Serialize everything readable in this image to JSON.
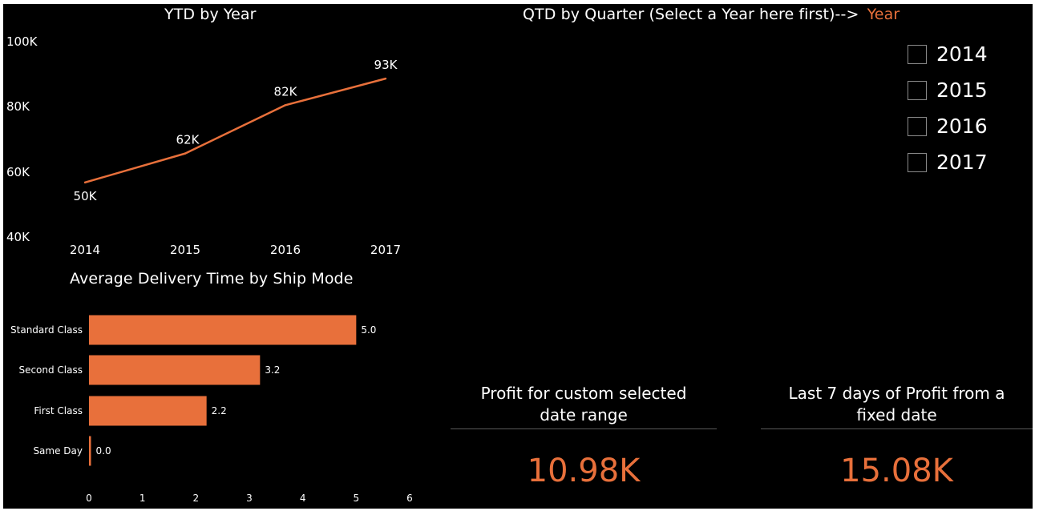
{
  "colors": {
    "background": "#000000",
    "accent": "#E8703B",
    "text": "#FFFFFF"
  },
  "ytd_chart": {
    "title": "YTD by Year"
  },
  "qtd_header": {
    "title": "QTD by Quarter (Select a Year here first)-->",
    "slicer_title": "Year"
  },
  "year_slicer": {
    "items": [
      {
        "label": "2014",
        "checked": false
      },
      {
        "label": "2015",
        "checked": false
      },
      {
        "label": "2016",
        "checked": false
      },
      {
        "label": "2017",
        "checked": false
      }
    ]
  },
  "delivery_chart": {
    "title": "Average Delivery Time by Ship Mode"
  },
  "card_custom": {
    "title_line1": "Profit for custom selected",
    "title_line2": "date range",
    "value": "10.98K"
  },
  "card_last7": {
    "title_line1": "Last 7 days of Profit from a",
    "title_line2": "fixed date",
    "value": "15.08K"
  },
  "chart_data": [
    {
      "type": "line",
      "title": "YTD by Year",
      "x": [
        "2014",
        "2015",
        "2016",
        "2017"
      ],
      "values": [
        50,
        62,
        82,
        93
      ],
      "data_labels": [
        "50K",
        "62K",
        "82K",
        "93K"
      ],
      "y_ticks": [
        "40K",
        "60K",
        "80K",
        "100K"
      ],
      "y_tick_values": [
        40,
        60,
        80,
        100
      ],
      "ylim": [
        40,
        100
      ],
      "unit": "K",
      "grid": false,
      "color": "#E8703B"
    },
    {
      "type": "bar",
      "orientation": "horizontal",
      "title": "Average Delivery Time by Ship Mode",
      "categories": [
        "Standard Class",
        "Second Class",
        "First Class",
        "Same Day"
      ],
      "values": [
        5.0,
        3.2,
        2.2,
        0.0
      ],
      "data_labels": [
        "5.0",
        "3.2",
        "2.2",
        "0.0"
      ],
      "x_ticks": [
        "0",
        "1",
        "2",
        "3",
        "4",
        "5",
        "6"
      ],
      "xlim": [
        0,
        6
      ],
      "grid": false,
      "color": "#E8703B"
    }
  ]
}
